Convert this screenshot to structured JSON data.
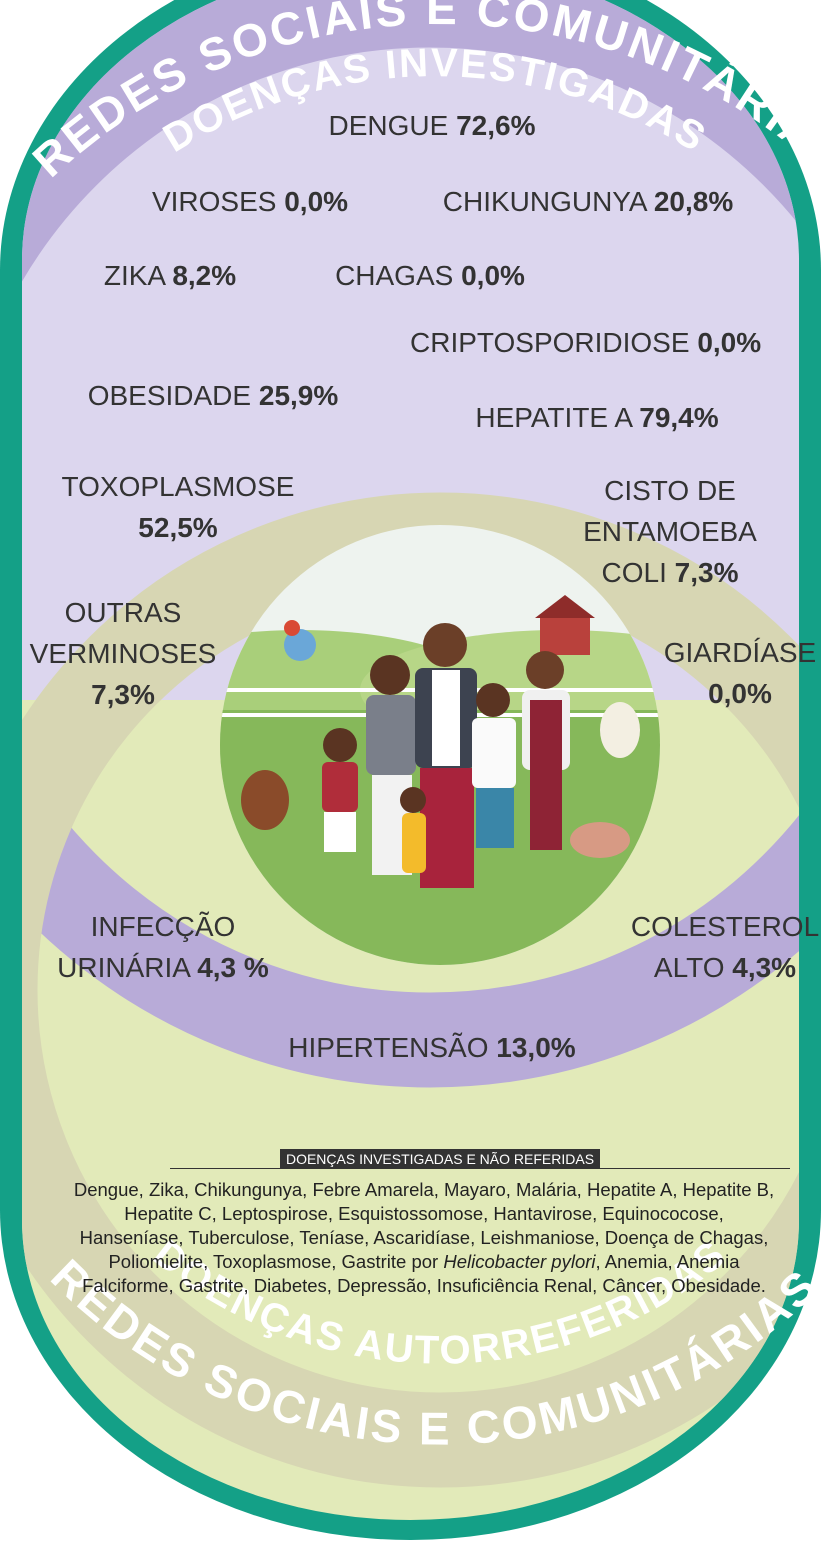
{
  "header": {
    "ring": "REDES SOCIAIS E COMUNITÁRIAS",
    "band": "DOENÇAS INVESTIGADAS"
  },
  "diseases": [
    {
      "name": [
        "DENGUE"
      ],
      "value": "72,6%"
    },
    {
      "name": [
        "VIROSES"
      ],
      "value": "0,0%"
    },
    {
      "name": [
        "CHIKUNGUNYA"
      ],
      "value": "20,8%"
    },
    {
      "name": [
        "ZIKA"
      ],
      "value": "8,2%"
    },
    {
      "name": [
        "CHAGAS"
      ],
      "value": "0,0%"
    },
    {
      "name": [
        "CRIPTOSPORIDIOSE"
      ],
      "value": "0,0%"
    },
    {
      "name": [
        "OBESIDADE"
      ],
      "value": "25,9%"
    },
    {
      "name": [
        "HEPATITE A"
      ],
      "value": "79,4%"
    },
    {
      "name": [
        "TOXOPLASMOSE"
      ],
      "value": "52,5%"
    },
    {
      "name": [
        "CISTO DE",
        "ENTAMOEBA",
        "COLI"
      ],
      "value": "7,3%"
    },
    {
      "name": [
        "OUTRAS",
        "VERMINOSES"
      ],
      "value": "7,3%"
    },
    {
      "name": [
        "GIARDÍASE"
      ],
      "value": "0,0%"
    },
    {
      "name": [
        "INFECÇÃO",
        "URINÁRIA"
      ],
      "value": "4,3 %"
    },
    {
      "name": [
        "COLESTEROL",
        "ALTO"
      ],
      "value": "4,3%"
    },
    {
      "name": [
        "HIPERTENSÃO"
      ],
      "value": "13,0%"
    }
  ],
  "box": {
    "title": "DOENÇAS INVESTIGADAS E NÃO REFERIDAS",
    "text_before": "Dengue, Zika, Chikungunya, Febre Amarela, Mayaro, Malária, Hepatite A, Hepatite B, Hepatite C, Leptospirose, Esquistossomose, Hantavirose, Equinococose, Hanseníase, Tuberculose, Teníase, Ascaridíase, Leishmaniose, Doença de Chagas, Poliomielite, Toxoplasmose, Gastrite por ",
    "italic": "Helicobacter pylori",
    "text_after": ", Anemia, Anemia Falciforme, Gastrite, Diabetes, Depressão, Insuficiência Renal, Câncer, Obesidade."
  },
  "footer": {
    "band": "DOENÇAS AUTORREFERIDAS",
    "ring": "REDES SOCIAIS E COMUNITÁRIAS"
  }
}
